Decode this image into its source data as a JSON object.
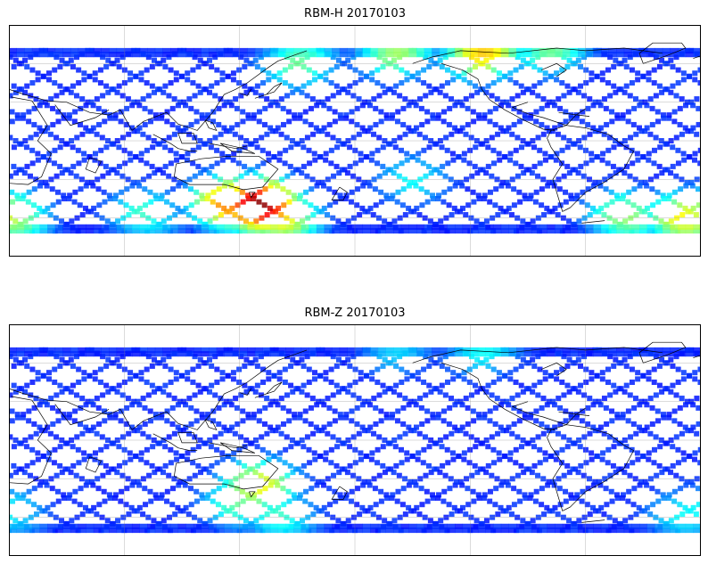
{
  "panels": [
    {
      "title": "RBM-H 20170103",
      "colormap": "jet",
      "hotspots": [
        {
          "lon": 130,
          "lat": -50,
          "level": 0.92
        },
        {
          "lon": 115,
          "lat": -48,
          "level": 0.7
        },
        {
          "lon": 140,
          "lat": -58,
          "level": 0.6
        },
        {
          "lon": 0,
          "lat": -58,
          "level": 0.5
        },
        {
          "lon": 350,
          "lat": -60,
          "level": 0.55
        },
        {
          "lon": 70,
          "lat": -56,
          "level": 0.35
        },
        {
          "lon": 200,
          "lat": 68,
          "level": 0.45
        },
        {
          "lon": 245,
          "lat": 68,
          "level": 0.6
        },
        {
          "lon": 280,
          "lat": 70,
          "level": 0.4
        },
        {
          "lon": 150,
          "lat": 60,
          "level": 0.4
        },
        {
          "lon": 210,
          "lat": -30,
          "level": 0.3
        },
        {
          "lon": 320,
          "lat": -58,
          "level": 0.45
        }
      ]
    },
    {
      "title": "RBM-Z 20170103",
      "colormap": "jet",
      "hotspots": [
        {
          "lon": 130,
          "lat": -35,
          "level": 0.55
        },
        {
          "lon": 120,
          "lat": -48,
          "level": 0.4
        },
        {
          "lon": 140,
          "lat": -58,
          "level": 0.35
        },
        {
          "lon": 0,
          "lat": -55,
          "level": 0.3
        },
        {
          "lon": 350,
          "lat": -58,
          "level": 0.3
        },
        {
          "lon": 245,
          "lat": 68,
          "level": 0.3
        },
        {
          "lon": 200,
          "lat": 68,
          "level": 0.25
        }
      ]
    }
  ],
  "map": {
    "projection": "PlateCarree",
    "central_longitude": 180,
    "extent": {
      "lon": [
        0,
        360
      ],
      "lat": [
        -90,
        90
      ]
    },
    "data_lat_range": [
      -70,
      70
    ],
    "gridlines": {
      "lon_step": 60,
      "lat_step": 30
    },
    "coastline_color": "#000000"
  }
}
